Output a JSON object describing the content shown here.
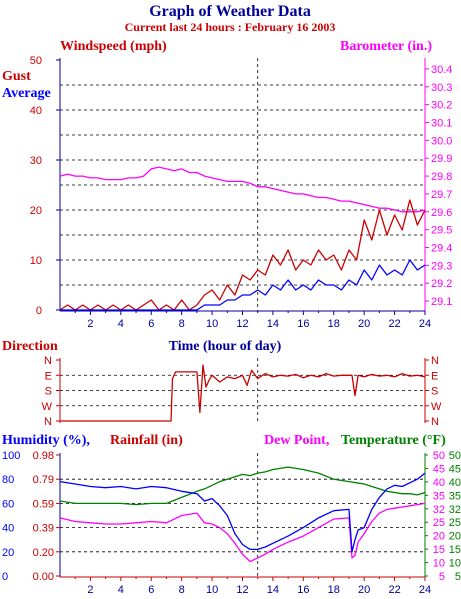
{
  "title": "Graph of Weather Data",
  "subtitle": "Current last 24 hours : February 16 2003",
  "colors": {
    "navy": "#000099",
    "red": "#cc0000",
    "blue": "#0000ff",
    "magenta": "#ff00ff",
    "green": "#008000",
    "bg": "#ffffff"
  },
  "x_axis": {
    "label": "Time (hour of day)",
    "range": [
      0,
      24
    ],
    "tick_labels": [
      "2",
      "4",
      "6",
      "8",
      "10",
      "12",
      "14",
      "16",
      "18",
      "20",
      "22",
      "24"
    ]
  },
  "chart_data": [
    {
      "type": "line",
      "panel": "wind",
      "left_label": "Windspeed (mph)",
      "right_label": "Barometer (in.)",
      "side_labels": [
        "Gust",
        "Average"
      ],
      "ylim": [
        0,
        50
      ],
      "y_tick_labels": [
        "0",
        "10",
        "20",
        "30",
        "40",
        "50"
      ],
      "y2lim": [
        29.05,
        30.45
      ],
      "y2_tick_labels": [
        "29.1",
        "29.2",
        "29.3",
        "29.4",
        "29.5",
        "29.6",
        "29.7",
        "29.8",
        "29.9",
        "30.0",
        "30.1",
        "30.2",
        "30.3",
        "30.4"
      ],
      "series": [
        {
          "name": "Gust",
          "axis": "left",
          "color": "#cc0000",
          "x": [
            0,
            0.5,
            1,
            1.5,
            2,
            2.5,
            3,
            3.5,
            4,
            4.5,
            5,
            5.5,
            6,
            6.5,
            7,
            7.5,
            8,
            8.5,
            9,
            9.5,
            10,
            10.5,
            11,
            11.5,
            12,
            12.5,
            13,
            13.5,
            14,
            14.5,
            15,
            15.5,
            16,
            16.5,
            17,
            17.5,
            18,
            18.5,
            19,
            19.5,
            20,
            20.5,
            21,
            21.5,
            22,
            22.5,
            23,
            23.5,
            24
          ],
          "y": [
            0,
            1,
            0,
            1,
            0,
            1,
            0,
            1,
            0,
            1,
            0,
            1,
            2,
            0,
            1,
            0,
            2,
            0,
            1,
            3,
            4,
            2,
            5,
            3,
            7,
            6,
            8,
            7,
            11,
            9,
            12,
            8,
            10,
            9,
            12,
            10,
            11,
            8,
            12,
            10,
            18,
            14,
            20,
            15,
            19,
            16,
            22,
            17,
            20
          ]
        },
        {
          "name": "Average",
          "axis": "left",
          "color": "#0000ff",
          "x": [
            0,
            0.5,
            1,
            1.5,
            2,
            2.5,
            3,
            3.5,
            4,
            4.5,
            5,
            5.5,
            6,
            6.5,
            7,
            7.5,
            8,
            8.5,
            9,
            9.5,
            10,
            10.5,
            11,
            11.5,
            12,
            12.5,
            13,
            13.5,
            14,
            14.5,
            15,
            15.5,
            16,
            16.5,
            17,
            17.5,
            18,
            18.5,
            19,
            19.5,
            20,
            20.5,
            21,
            21.5,
            22,
            22.5,
            23,
            23.5,
            24
          ],
          "y": [
            0,
            0,
            0,
            0,
            0,
            0,
            0,
            0,
            0,
            0,
            0,
            0,
            0,
            0,
            0,
            0,
            0,
            0,
            0,
            1,
            1,
            1,
            2,
            2,
            3,
            3,
            4,
            3,
            5,
            4,
            6,
            4,
            5,
            4,
            6,
            5,
            5,
            4,
            6,
            5,
            8,
            6,
            9,
            7,
            8,
            7,
            10,
            8,
            9
          ]
        },
        {
          "name": "Barometer",
          "axis": "right",
          "color": "#ff00ff",
          "x": [
            0,
            0.5,
            1,
            1.5,
            2,
            2.5,
            3,
            3.5,
            4,
            4.5,
            5,
            5.5,
            6,
            6.5,
            7,
            7.5,
            8,
            8.5,
            9,
            9.5,
            10,
            10.5,
            11,
            11.5,
            12,
            12.5,
            13,
            13.5,
            14,
            14.5,
            15,
            15.5,
            16,
            16.5,
            17,
            17.5,
            18,
            18.5,
            19,
            19.5,
            20,
            20.5,
            21,
            21.5,
            22,
            22.5,
            23,
            23.5,
            24
          ],
          "y": [
            29.8,
            29.81,
            29.8,
            29.8,
            29.79,
            29.79,
            29.78,
            29.78,
            29.78,
            29.79,
            29.79,
            29.8,
            29.84,
            29.85,
            29.84,
            29.83,
            29.84,
            29.82,
            29.82,
            29.8,
            29.79,
            29.78,
            29.77,
            29.77,
            29.77,
            29.76,
            29.74,
            29.74,
            29.73,
            29.72,
            29.71,
            29.7,
            29.7,
            29.69,
            29.68,
            29.68,
            29.67,
            29.66,
            29.66,
            29.65,
            29.64,
            29.63,
            29.62,
            29.62,
            29.61,
            29.6,
            29.6,
            29.6,
            29.61
          ]
        }
      ]
    },
    {
      "type": "line",
      "panel": "direction",
      "left_label": "Direction",
      "y_tick_labels": [
        "N",
        "W",
        "S",
        "E",
        "N"
      ],
      "ylim": [
        0,
        360
      ],
      "series": [
        {
          "name": "Direction",
          "color": "#cc0000",
          "x": [
            0,
            1,
            2,
            3,
            4,
            5,
            6,
            7,
            7.3,
            7.4,
            7.6,
            8.0,
            8.6,
            9.0,
            9.2,
            9.4,
            9.6,
            9.8,
            10,
            10.5,
            11,
            11.5,
            12,
            12.3,
            12.6,
            13,
            13.5,
            14,
            14.5,
            15,
            15.5,
            16,
            16.5,
            17,
            17.5,
            18,
            18.5,
            19,
            19.2,
            19.4,
            19.6,
            20,
            20.5,
            21,
            21.5,
            22,
            22.5,
            23,
            23.5,
            24
          ],
          "y": [
            0,
            0,
            0,
            0,
            0,
            0,
            0,
            0,
            0,
            250,
            290,
            290,
            290,
            290,
            50,
            330,
            200,
            240,
            270,
            230,
            260,
            250,
            270,
            210,
            300,
            250,
            280,
            260,
            270,
            265,
            275,
            255,
            270,
            260,
            280,
            265,
            270,
            270,
            270,
            150,
            270,
            260,
            275,
            265,
            270,
            260,
            280,
            265,
            270,
            260
          ]
        }
      ]
    },
    {
      "type": "line",
      "panel": "humidity",
      "labels": [
        "Humidity (%),",
        "Rainfall (in)",
        "Dew Point,",
        "Temperature (°F)"
      ],
      "humidity_tick_labels": [
        "0",
        "20",
        "40",
        "60",
        "80",
        "100"
      ],
      "rainfall_tick_labels": [
        "0.00",
        "0.20",
        "0.39",
        "0.59",
        "0.79",
        "0.98"
      ],
      "dewpoint_tick_labels": [
        "5",
        "10",
        "15",
        "20",
        "25",
        "32",
        "35",
        "40",
        "45",
        "50"
      ],
      "temperature_tick_labels": [
        "5",
        "10",
        "15",
        "20",
        "25",
        "32",
        "35",
        "40",
        "45",
        "50"
      ],
      "ylim": [
        0,
        100
      ],
      "series": [
        {
          "name": "Humidity",
          "color": "#0000ff",
          "x": [
            0,
            1,
            2,
            3,
            4,
            5,
            6,
            7,
            8,
            9,
            9.5,
            10,
            10.5,
            11,
            11.5,
            12,
            12.5,
            13,
            13.5,
            14,
            15,
            16,
            17,
            18,
            19,
            19.2,
            19.4,
            19.6,
            20,
            20.5,
            21,
            21.5,
            22,
            22.5,
            23,
            23.5,
            24
          ],
          "y": [
            78,
            76,
            74,
            73,
            74,
            72,
            74,
            73,
            70,
            68,
            62,
            64,
            58,
            50,
            35,
            26,
            22,
            22,
            24,
            27,
            33,
            40,
            48,
            54,
            55,
            20,
            30,
            38,
            40,
            55,
            65,
            72,
            75,
            74,
            77,
            80,
            85
          ]
        },
        {
          "name": "Dew Point",
          "color": "#ff00ff",
          "x": [
            0,
            1,
            2,
            3,
            4,
            5,
            6,
            7,
            8,
            9,
            9.5,
            10,
            10.5,
            11,
            11.5,
            12,
            12.5,
            13,
            13.5,
            14,
            15,
            16,
            17,
            18,
            19,
            19.2,
            19.4,
            19.6,
            20,
            20.5,
            21,
            21.5,
            22,
            22.5,
            23,
            23.5,
            24
          ],
          "y": [
            48,
            45,
            44,
            43,
            43,
            44,
            45,
            44,
            50,
            52,
            44,
            43,
            40,
            35,
            27,
            18,
            12,
            15,
            18,
            22,
            28,
            33,
            40,
            47,
            48,
            15,
            17,
            28,
            35,
            45,
            52,
            55,
            56,
            57,
            58,
            59,
            60
          ]
        },
        {
          "name": "Temperature",
          "color": "#008000",
          "x": [
            0,
            1,
            2,
            3,
            4,
            5,
            6,
            7,
            8,
            9,
            9.5,
            10,
            10.5,
            11,
            11.5,
            12,
            12.5,
            13,
            13.5,
            14,
            15,
            16,
            17,
            18,
            19,
            19.5,
            20,
            20.5,
            21,
            21.5,
            22,
            22.5,
            23,
            23.5,
            24
          ],
          "y": [
            62,
            60,
            60,
            60,
            60,
            59,
            60,
            60,
            65,
            70,
            72,
            75,
            78,
            80,
            82,
            84,
            83,
            85,
            86,
            88,
            90,
            88,
            85,
            80,
            78,
            77,
            76,
            74,
            72,
            70,
            69,
            68,
            68,
            67,
            69
          ]
        }
      ]
    }
  ]
}
